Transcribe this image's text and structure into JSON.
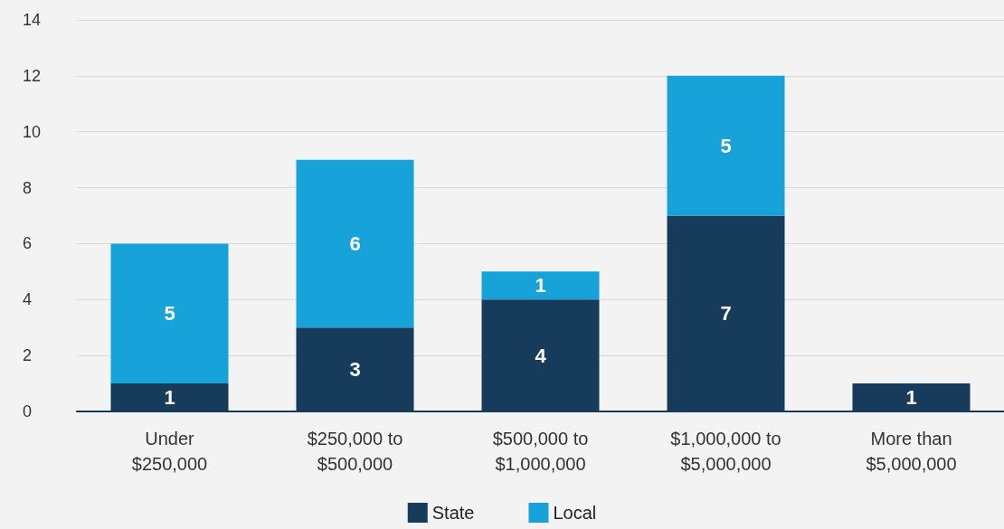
{
  "chart_data": {
    "type": "bar",
    "stacked": true,
    "categories": [
      "Under\n$250,000",
      "$250,000 to\n$500,000",
      "$500,000 to\n$1,000,000",
      "$1,000,000 to\n$5,000,000",
      "More than\n$5,000,000"
    ],
    "series": [
      {
        "name": "State",
        "color": "#173b5a",
        "values": [
          1,
          3,
          4,
          7,
          1
        ]
      },
      {
        "name": "Local",
        "color": "#17a2d9",
        "values": [
          5,
          6,
          1,
          5,
          null
        ]
      }
    ],
    "ylim": [
      0,
      14
    ],
    "yticks": [
      0,
      2,
      4,
      6,
      8,
      10,
      12,
      14
    ],
    "grid": "y",
    "legend": "bottom",
    "data_labels": true
  }
}
